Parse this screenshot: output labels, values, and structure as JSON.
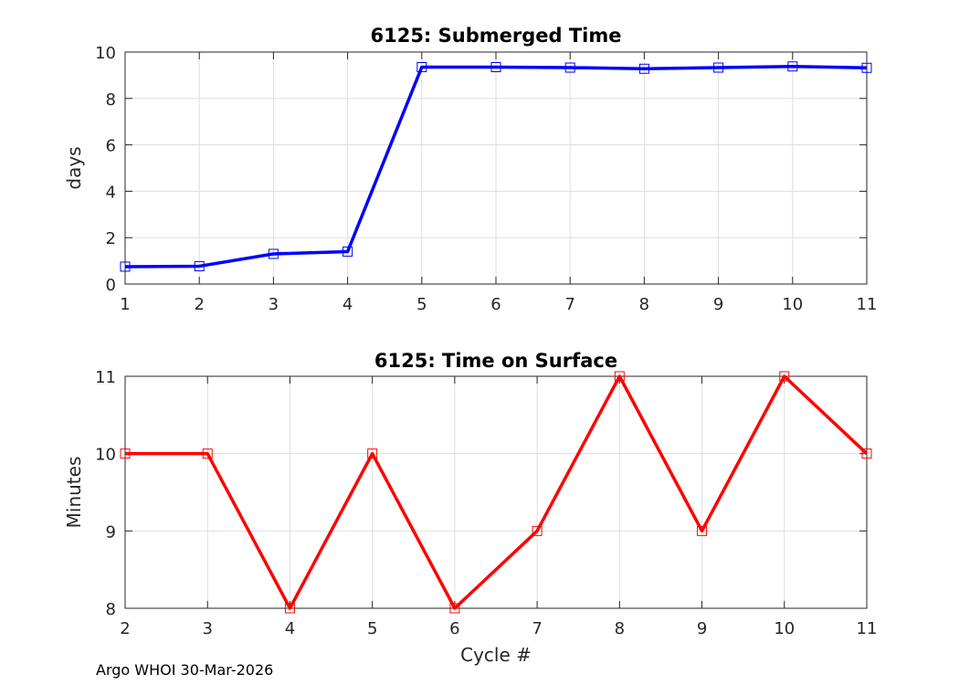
{
  "footer": "Argo WHOI 30-Mar-2026",
  "chart_data": [
    {
      "type": "line",
      "title": "6125: Submerged Time",
      "xlabel": "",
      "ylabel": "days",
      "xlim": [
        1,
        11
      ],
      "ylim": [
        0,
        10
      ],
      "xticks": [
        1,
        2,
        3,
        4,
        5,
        6,
        7,
        8,
        9,
        10,
        11
      ],
      "yticks": [
        0,
        2,
        4,
        6,
        8,
        10
      ],
      "grid": true,
      "series": [
        {
          "color": "#0000ff",
          "marker": "square",
          "x": [
            1,
            2,
            3,
            4,
            5,
            6,
            7,
            8,
            9,
            10,
            11
          ],
          "y": [
            0.75,
            0.77,
            1.3,
            1.4,
            9.35,
            9.35,
            9.33,
            9.28,
            9.33,
            9.38,
            9.32
          ]
        }
      ]
    },
    {
      "type": "line",
      "title": "6125: Time on Surface",
      "xlabel": "Cycle #",
      "ylabel": "Minutes",
      "xlim": [
        2,
        11
      ],
      "ylim": [
        8,
        11
      ],
      "xticks": [
        2,
        3,
        4,
        5,
        6,
        7,
        8,
        9,
        10,
        11
      ],
      "yticks": [
        8,
        9,
        10,
        11
      ],
      "grid": true,
      "series": [
        {
          "color": "#ff0000",
          "marker": "square",
          "x": [
            2,
            3,
            4,
            5,
            6,
            7,
            8,
            9,
            10,
            11
          ],
          "y": [
            10,
            10,
            8,
            10,
            8,
            9,
            11,
            9,
            11,
            10
          ]
        }
      ]
    }
  ]
}
